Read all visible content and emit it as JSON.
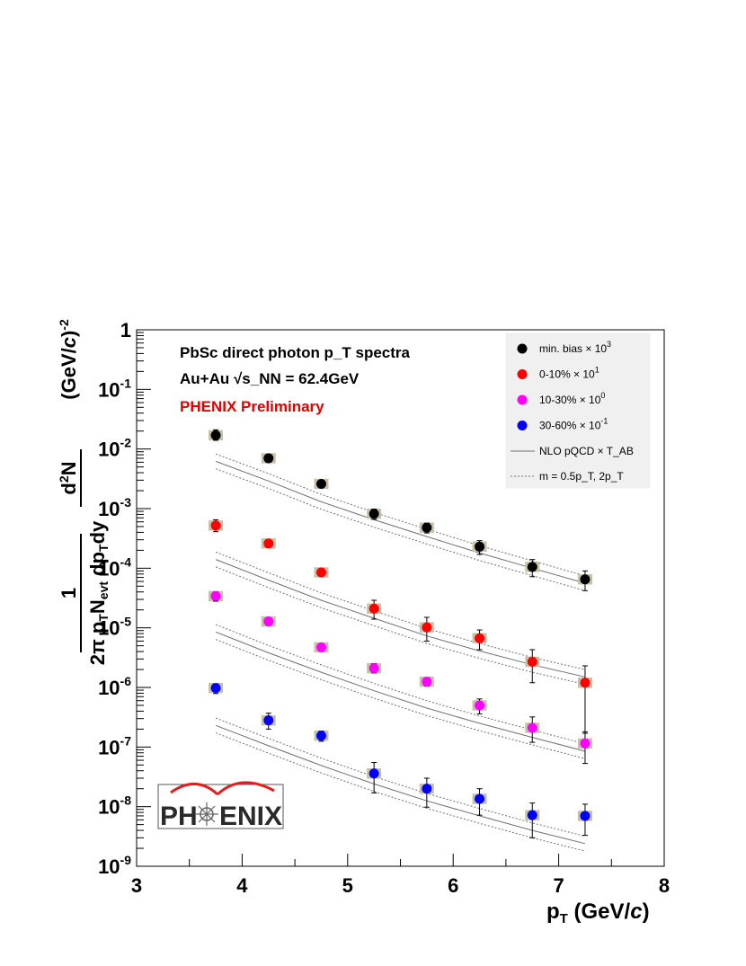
{
  "chart_data": {
    "type": "scatter",
    "title": "PbSc direct photon p_T spectra",
    "subtitle": "Au+Au √s_NN = 62.4GeV",
    "annotation": "PHENIX Preliminary",
    "xlabel": "p_T (GeV/c)",
    "ylabel": "1/(2π p_T N_evt) d²N/(dp_T dy) (GeV/c)^-2",
    "xlim": [
      3,
      8
    ],
    "ylim": [
      1e-09,
      1
    ],
    "yscale": "log",
    "x_ticks": [
      "3",
      "4",
      "5",
      "6",
      "7",
      "8"
    ],
    "y_ticks": [
      "10^-9",
      "10^-8",
      "10^-7",
      "10^-6",
      "10^-5",
      "10^-4",
      "10^-3",
      "10^-2",
      "10^-1",
      "1"
    ],
    "legend_position": "top-right",
    "x": [
      3.75,
      4.25,
      4.75,
      5.25,
      5.75,
      6.25,
      6.75,
      7.25
    ],
    "series": [
      {
        "name": "min. bias × 10^3",
        "color": "#000000",
        "values": [
          0.017,
          0.007,
          0.0026,
          0.00082,
          0.00048,
          0.00023,
          0.000105,
          6.5e-05
        ],
        "err_lo": [
          0.014,
          0.006,
          0.0023,
          0.00066,
          0.00039,
          0.00017,
          7.2e-05,
          4.2e-05
        ],
        "err_hi": [
          0.021,
          0.0081,
          0.0029,
          0.00098,
          0.00057,
          0.00029,
          0.00014,
          9e-05
        ],
        "theory": [
          0.0062,
          0.0029,
          0.0013,
          0.00065,
          0.00034,
          0.00018,
          0.0001,
          5.6e-05
        ]
      },
      {
        "name": "0-10% × 10^1",
        "color": "#ff0000",
        "values": [
          0.00052,
          0.00026,
          8.5e-05,
          2.1e-05,
          1.02e-05,
          6.7e-06,
          2.7e-06,
          1.2e-06
        ],
        "err_lo": [
          0.00041,
          0.00023,
          7.6e-05,
          1.4e-05,
          6e-06,
          4.3e-06,
          1.2e-06,
          1.7e-07
        ],
        "err_hi": [
          0.00065,
          0.00029,
          9.4e-05,
          2.9e-05,
          1.5e-05,
          9.2e-06,
          4.3e-06,
          2.3e-06
        ],
        "theory": [
          0.00014,
          6.3e-05,
          2.9e-05,
          1.45e-05,
          7.3e-06,
          4.1e-06,
          2.4e-06,
          1.5e-06
        ]
      },
      {
        "name": "10-30% × 10^0",
        "color": "#ff00ff",
        "values": [
          3.4e-05,
          1.28e-05,
          4.7e-06,
          2.1e-06,
          1.25e-06,
          5e-07,
          2.1e-07,
          1.15e-07
        ],
        "err_lo": [
          2.8e-05,
          1.13e-05,
          4.1e-06,
          1.75e-06,
          1.05e-06,
          3.6e-07,
          1.2e-07,
          5.3e-08
        ],
        "err_hi": [
          4e-05,
          1.45e-05,
          5.2e-06,
          2.5e-06,
          1.45e-06,
          6.4e-07,
          3.2e-07,
          1.8e-07
        ],
        "theory": [
          8.5e-06,
          3.8e-06,
          1.8e-06,
          8.8e-07,
          4.5e-07,
          2.5e-07,
          1.45e-07,
          8.5e-08
        ]
      },
      {
        "name": "30-60% × 10^-1",
        "color": "#0000ff",
        "values": [
          9.8e-07,
          2.8e-07,
          1.55e-07,
          3.6e-08,
          2e-08,
          1.35e-08,
          7.2e-09,
          7e-09
        ],
        "err_lo": [
          7.9e-07,
          2e-07,
          1.25e-07,
          1.7e-08,
          9.8e-09,
          7.2e-09,
          3e-09,
          3.3e-09
        ],
        "err_hi": [
          1.15e-06,
          3.7e-07,
          1.85e-07,
          5.5e-08,
          3e-08,
          2e-08,
          1.15e-08,
          1.1e-08
        ],
        "theory": [
          2.3e-07,
          1.05e-07,
          4.9e-08,
          2.4e-08,
          1.25e-08,
          7e-09,
          4e-09,
          2.4e-09
        ]
      }
    ],
    "theory_legend": [
      "NLO pQCD × T_AB",
      "m = 0.5p_T, 2p_T"
    ]
  },
  "logo": {
    "text_left": "PH",
    "text_right": "ENIX"
  },
  "colors": {
    "sys_box": "#c8c0a8",
    "legend_bg": "#f0f0f0",
    "theory_line": "#707070"
  }
}
